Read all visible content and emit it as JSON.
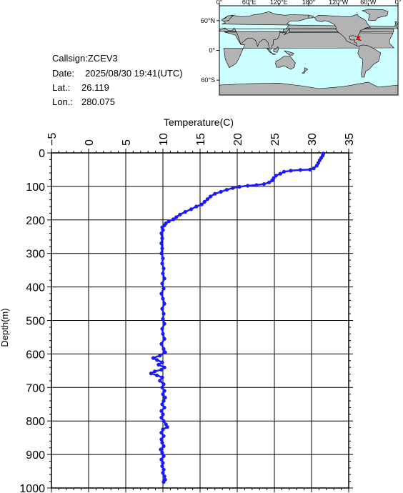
{
  "meta": {
    "callsign_label": "Callsign:",
    "callsign": "ZCEV3",
    "date_label": "Date:",
    "date": "2025/08/30 19:41(UTC)",
    "lat_label": "Lat.:",
    "lat": "26.119",
    "lon_label": "Lon.:",
    "lon": "280.075"
  },
  "map": {
    "top_ticks": [
      "0°",
      "60°E",
      "120°E",
      "180°",
      "120°W",
      "60°W",
      "0°"
    ],
    "left_ticks": [
      "60°N",
      "0°",
      "60°S"
    ],
    "ocean_color": "#ccffff",
    "land_color": "#b3b3b3",
    "marker_color": "#ff0000",
    "marker_lon": 280.075,
    "marker_lat": 26.119
  },
  "chart_data": {
    "type": "line",
    "xlabel": "Temperature(C)",
    "ylabel": "Depth(m)",
    "xlim": [
      -5,
      35
    ],
    "ylim": [
      1000,
      0
    ],
    "x_ticks": [
      -5,
      0,
      5,
      10,
      15,
      20,
      25,
      30,
      35
    ],
    "y_ticks": [
      0,
      100,
      200,
      300,
      400,
      500,
      600,
      700,
      800,
      900,
      1000
    ],
    "grid": true,
    "line_color": "#1a1aff",
    "series": [
      {
        "points": [
          [
            31.6,
            2
          ],
          [
            31.5,
            8
          ],
          [
            31.3,
            15
          ],
          [
            31.1,
            22
          ],
          [
            30.9,
            30
          ],
          [
            30.7,
            38
          ],
          [
            30.3,
            46
          ],
          [
            29.8,
            50
          ],
          [
            28.5,
            51
          ],
          [
            27.2,
            53
          ],
          [
            26.3,
            56
          ],
          [
            25.8,
            62
          ],
          [
            25.2,
            68
          ],
          [
            24.9,
            75
          ],
          [
            24.7,
            82
          ],
          [
            24.3,
            88
          ],
          [
            23.6,
            93
          ],
          [
            22.6,
            96
          ],
          [
            21.4,
            98
          ],
          [
            20.3,
            101
          ],
          [
            19.4,
            105
          ],
          [
            18.6,
            110
          ],
          [
            17.8,
            116
          ],
          [
            17.0,
            122
          ],
          [
            16.4,
            130
          ],
          [
            16.0,
            138
          ],
          [
            15.6,
            146
          ],
          [
            15.2,
            154
          ],
          [
            14.5,
            160
          ],
          [
            13.8,
            168
          ],
          [
            13.0,
            176
          ],
          [
            12.3,
            184
          ],
          [
            11.8,
            192
          ],
          [
            11.4,
            198
          ],
          [
            10.8,
            204
          ],
          [
            10.4,
            210
          ],
          [
            10.2,
            216
          ],
          [
            9.9,
            222
          ],
          [
            10.0,
            230
          ],
          [
            9.8,
            240
          ],
          [
            9.9,
            255
          ],
          [
            9.8,
            270
          ],
          [
            9.9,
            285
          ],
          [
            9.8,
            300
          ],
          [
            10.0,
            315
          ],
          [
            9.9,
            330
          ],
          [
            10.1,
            345
          ],
          [
            10.0,
            360
          ],
          [
            10.2,
            375
          ],
          [
            9.9,
            390
          ],
          [
            10.1,
            405
          ],
          [
            9.8,
            420
          ],
          [
            10.0,
            435
          ],
          [
            10.2,
            450
          ],
          [
            9.9,
            465
          ],
          [
            10.1,
            480
          ],
          [
            10.0,
            495
          ],
          [
            10.2,
            510
          ],
          [
            9.9,
            525
          ],
          [
            10.0,
            540
          ],
          [
            10.2,
            555
          ],
          [
            9.8,
            570
          ],
          [
            10.1,
            585
          ],
          [
            10.3,
            595
          ],
          [
            9.6,
            605
          ],
          [
            8.7,
            612
          ],
          [
            9.2,
            618
          ],
          [
            9.9,
            625
          ],
          [
            9.4,
            632
          ],
          [
            10.2,
            640
          ],
          [
            9.8,
            647
          ],
          [
            8.9,
            652
          ],
          [
            8.4,
            658
          ],
          [
            9.2,
            664
          ],
          [
            9.9,
            670
          ],
          [
            9.6,
            680
          ],
          [
            10.1,
            690
          ],
          [
            9.9,
            700
          ],
          [
            10.2,
            710
          ],
          [
            10.0,
            720
          ],
          [
            10.3,
            730
          ],
          [
            10.1,
            740
          ],
          [
            9.9,
            750
          ],
          [
            10.2,
            760
          ],
          [
            9.8,
            770
          ],
          [
            10.0,
            780
          ],
          [
            9.8,
            790
          ],
          [
            10.1,
            800
          ],
          [
            10.4,
            810
          ],
          [
            10.6,
            818
          ],
          [
            10.0,
            825
          ],
          [
            9.8,
            835
          ],
          [
            10.1,
            845
          ],
          [
            9.8,
            855
          ],
          [
            9.9,
            865
          ],
          [
            10.1,
            875
          ],
          [
            9.7,
            885
          ],
          [
            9.9,
            895
          ],
          [
            10.1,
            905
          ],
          [
            9.8,
            915
          ],
          [
            10.0,
            925
          ],
          [
            9.9,
            935
          ],
          [
            10.1,
            945
          ],
          [
            10.0,
            955
          ],
          [
            10.2,
            965
          ],
          [
            10.3,
            975
          ],
          [
            10.1,
            982
          ]
        ]
      }
    ]
  }
}
